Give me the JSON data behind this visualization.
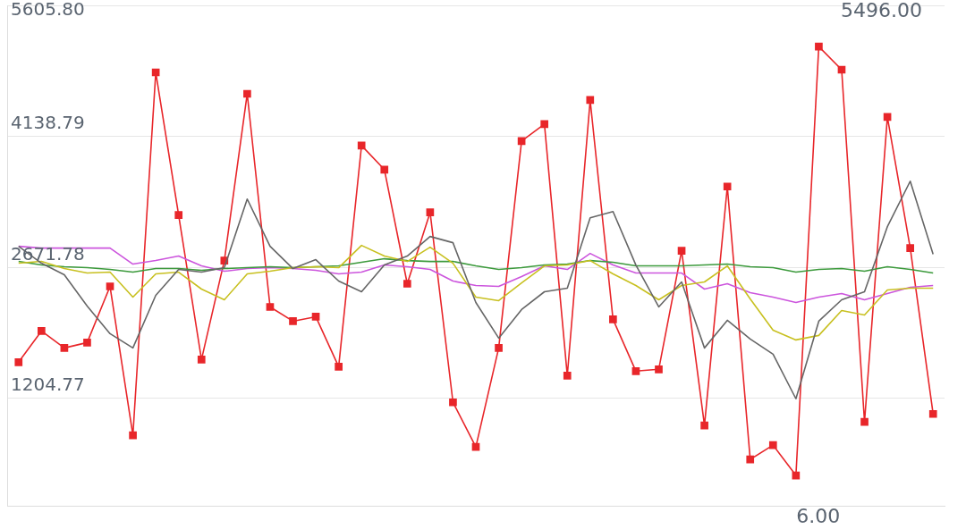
{
  "chart_data": {
    "type": "line",
    "categories": [
      null,
      null,
      null,
      null,
      null,
      null,
      null,
      null,
      null,
      null,
      null,
      null,
      null,
      null,
      null,
      null,
      null,
      null,
      null,
      null,
      null,
      null,
      null,
      null,
      null,
      null,
      null,
      null,
      null,
      null,
      null,
      null,
      null,
      null,
      null,
      null,
      null,
      null,
      null,
      null,
      null
    ],
    "series": [
      {
        "color": "#666666",
        "values": [
          2910,
          2720,
          2590,
          2240,
          1930,
          1770,
          2360,
          2650,
          2620,
          2670,
          3440,
          2910,
          2660,
          2760,
          2520,
          2400,
          2700,
          2800,
          3020,
          2950,
          2280,
          1880,
          2200,
          2400,
          2440,
          3230,
          3300,
          2700,
          2230,
          2510,
          1770,
          2080,
          1870,
          1700,
          1200,
          2070,
          2310,
          2400,
          3130,
          3640,
          2820
        ]
      },
      {
        "color": "#c8c020",
        "values": [
          2720,
          2740,
          2660,
          2610,
          2620,
          2340,
          2600,
          2620,
          2430,
          2310,
          2600,
          2630,
          2670,
          2680,
          2670,
          2920,
          2800,
          2740,
          2900,
          2720,
          2340,
          2300,
          2500,
          2690,
          2700,
          2750,
          2600,
          2470,
          2310,
          2470,
          2510,
          2690,
          2320,
          1970,
          1860,
          1910,
          2190,
          2140,
          2420,
          2440,
          2440
        ]
      },
      {
        "color": "#3c9a3c",
        "values": [
          2740,
          2700,
          2680,
          2670,
          2650,
          2620,
          2660,
          2660,
          2640,
          2660,
          2670,
          2680,
          2670,
          2680,
          2690,
          2730,
          2770,
          2750,
          2740,
          2740,
          2690,
          2650,
          2670,
          2700,
          2710,
          2750,
          2730,
          2690,
          2690,
          2690,
          2700,
          2710,
          2680,
          2670,
          2620,
          2650,
          2660,
          2630,
          2680,
          2650,
          2610
        ]
      },
      {
        "color": "#cc55dd",
        "values": [
          2910,
          2890,
          2890,
          2890,
          2890,
          2710,
          2750,
          2800,
          2690,
          2630,
          2660,
          2670,
          2660,
          2640,
          2600,
          2620,
          2700,
          2680,
          2650,
          2520,
          2470,
          2460,
          2570,
          2690,
          2650,
          2830,
          2700,
          2610,
          2610,
          2610,
          2430,
          2490,
          2390,
          2340,
          2280,
          2340,
          2380,
          2310,
          2380,
          2450,
          2470
        ]
      },
      {
        "color": "#e8262a",
        "marker": "square",
        "values": [
          1610,
          1960,
          1770,
          1830,
          2460,
          790,
          4860,
          3260,
          1640,
          2750,
          4620,
          2230,
          2070,
          2120,
          1560,
          4040,
          3770,
          2490,
          3290,
          1160,
          660,
          1770,
          4090,
          4280,
          1460,
          4550,
          2090,
          1510,
          1530,
          2860,
          900,
          3580,
          520,
          680,
          340,
          5150,
          4890,
          940,
          4360,
          2890,
          1030
        ]
      }
    ],
    "ylim": [
      0,
      5605.8
    ],
    "yticks": [
      1204.77,
      2671.78,
      4138.79,
      {
        "value": 5605.8,
        "label": "5605.80"
      }
    ],
    "grid": "y",
    "legend": false,
    "tick_labels": "y",
    "marker": "none",
    "annotations": [
      "5496.00",
      "6.00"
    ]
  }
}
